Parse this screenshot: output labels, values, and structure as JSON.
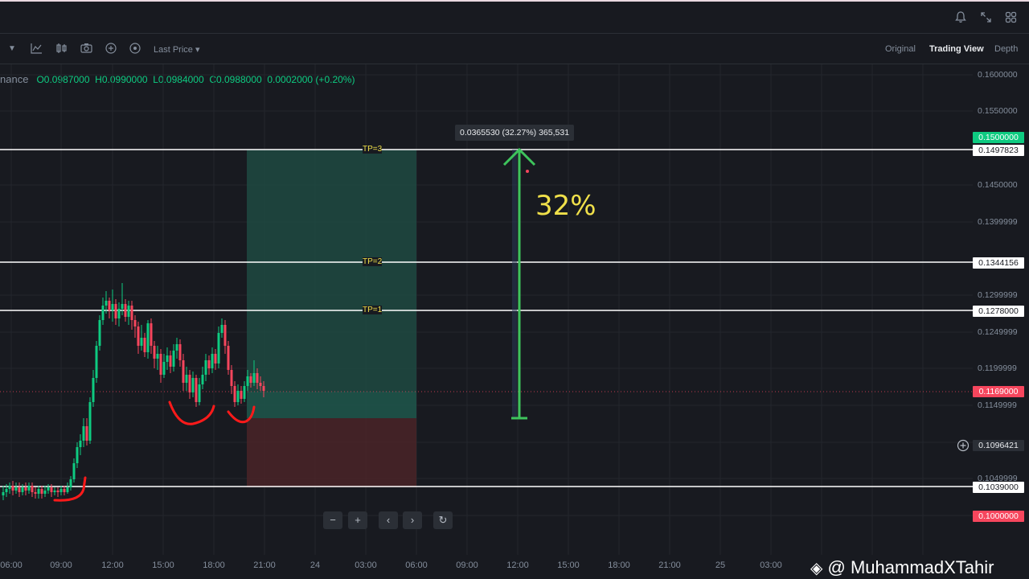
{
  "header": {
    "icons": [
      "bell-icon",
      "expand-icon",
      "grid-icon"
    ]
  },
  "toolbar": {
    "last_price_label": "Last Price",
    "views": [
      "Original",
      "Trading View",
      "Depth"
    ],
    "active_view": "Trading View"
  },
  "ohlc": {
    "source": "nance",
    "o": "O0.0987000",
    "h": "H0.0990000",
    "l": "L0.0984000",
    "c": "C0.0988000",
    "change": "0.0002000 (+0.20%)"
  },
  "price_axis": {
    "ticks": [
      "0.1600000",
      "0.1550000",
      "0.1450000",
      "0.1399999",
      "0.1299999",
      "0.1249999",
      "0.1199999",
      "0.1149999",
      "0.1049999"
    ],
    "tags": {
      "target_price": "0.1500000",
      "tp3": "0.1497823",
      "tp2": "0.1344156",
      "tp1": "0.1278000",
      "current": "0.1169000",
      "crosshair": "0.1096421",
      "support": "0.1039000",
      "stop": "0.1000000"
    }
  },
  "time_axis": [
    "06:00",
    "09:00",
    "12:00",
    "15:00",
    "18:00",
    "21:00",
    "24",
    "03:00",
    "06:00",
    "09:00",
    "12:00",
    "15:00",
    "18:00",
    "21:00",
    "25",
    "03:00"
  ],
  "annotations": {
    "tp3": "TP=3",
    "tp2": "TP=2",
    "tp1": "TP=1",
    "measure_tooltip": "0.0365530 (32.27%) 365,531",
    "percent": "32%"
  },
  "nav_buttons": [
    "−",
    "+",
    "‹",
    "›",
    "↻"
  ],
  "watermark": "@ MuhammadXTahir",
  "colors": {
    "up": "#0ecb81",
    "down": "#f6465d",
    "profit_zone": "#1f4a42",
    "loss_zone": "#4a2428",
    "arrow": "#3ec45c",
    "percent_text": "#f0e04a"
  }
}
